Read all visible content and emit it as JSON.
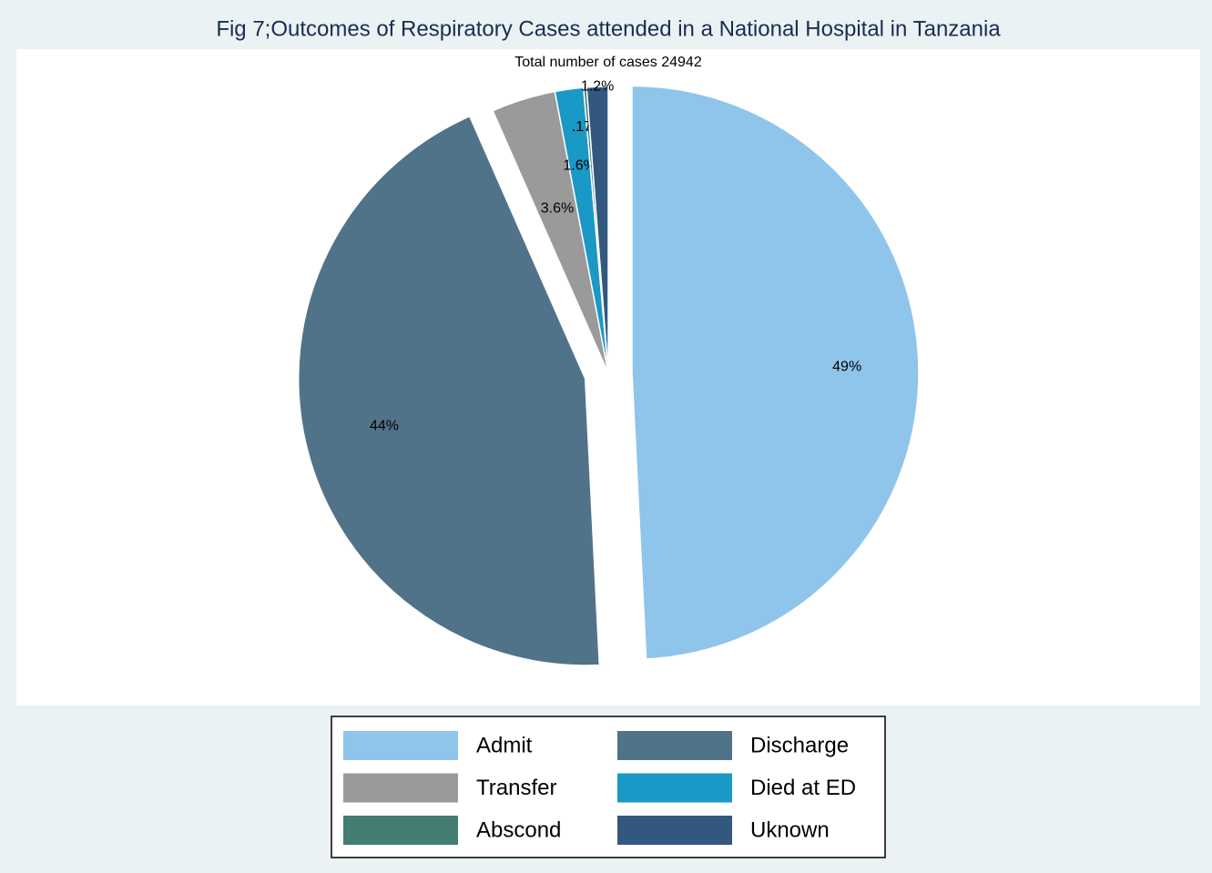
{
  "chart_data": {
    "type": "pie",
    "title": "Fig 7;Outcomes of Respiratory Cases attended in a National Hospital in Tanzania",
    "subtitle": "Total number of cases 24942",
    "categories": [
      "Admit",
      "Discharge",
      "Transfer",
      "Died at ED",
      "Abscond",
      "Uknown"
    ],
    "values": [
      49,
      44,
      3.6,
      1.6,
      0.17,
      1.2
    ],
    "value_labels": [
      "49%",
      "44%",
      "3.6%",
      "1.6%",
      ".17%",
      "1.2%"
    ],
    "colors": [
      "#8fc5eb",
      "#517389",
      "#9a9a9a",
      "#1a98c6",
      "#437d72",
      "#325880"
    ],
    "exploded": [
      true,
      true,
      false,
      false,
      false,
      false
    ]
  }
}
